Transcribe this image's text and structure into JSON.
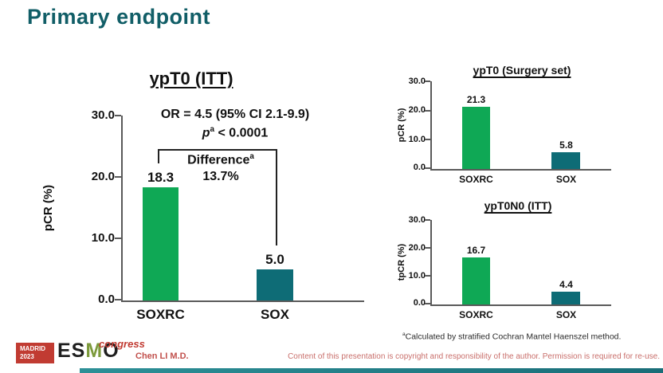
{
  "slide": {
    "title": "Primary endpoint",
    "presenter": "Chen LI M.D.",
    "disclaimer": "Content of this presentation is copyright and responsibility of the author. Permission is required for re-use.",
    "footnote_sup": "a",
    "footnote_text": "Calculated by stratified Cochran Mantel Haenszel method."
  },
  "logo": {
    "city": "MADRID",
    "year": "2023",
    "org_part1": "ES",
    "org_part2": "M",
    "org_part3": "O",
    "event": "congress"
  },
  "colors": {
    "title_teal": "#115E67",
    "bar_green": "#0FA855",
    "bar_teal": "#0E6C76",
    "axis_gray": "#5A5A5A",
    "red_text": "#C1504C",
    "logo_red": "#C13B32",
    "bottom_bar_teal": "#1F7E89"
  },
  "annotation": {
    "or_text": "OR = 4.5 (95% CI 2.1-9.9)",
    "p_italic": "p",
    "p_sup": "a",
    "p_rest": " < 0.0001",
    "difference_label": "Difference",
    "difference_sup": "a",
    "difference_value": "13.7%"
  },
  "chart_data": [
    {
      "id": "ypt0-itt",
      "type": "bar",
      "title": "ypT0 (ITT)",
      "ylabel": "pCR (%)",
      "categories": [
        "SOXRC",
        "SOX"
      ],
      "values": [
        18.3,
        5.0
      ],
      "value_labels": [
        "18.3",
        "5.0"
      ],
      "ylim": [
        0,
        30
      ],
      "yticks": [
        "30.0",
        "20.0",
        "10.0",
        "0.0"
      ],
      "grid": "off",
      "bar_colors": [
        "#0FA855",
        "#0E6C76"
      ],
      "annotations": [
        "OR = 4.5 (95% CI 2.1-9.9)",
        "pa < 0.0001",
        "Differencea 13.7%"
      ]
    },
    {
      "id": "ypt0-surgery-set",
      "type": "bar",
      "title": "ypT0 (Surgery set)",
      "ylabel": "pCR (%)",
      "categories": [
        "SOXRC",
        "SOX"
      ],
      "values": [
        21.3,
        5.8
      ],
      "value_labels": [
        "21.3",
        "5.8"
      ],
      "ylim": [
        0,
        30
      ],
      "yticks": [
        "30.0",
        "20.0",
        "10.0",
        "0.0"
      ],
      "grid": "off",
      "bar_colors": [
        "#0FA855",
        "#0E6C76"
      ]
    },
    {
      "id": "ypt0n0-itt",
      "type": "bar",
      "title": "ypT0N0 (ITT)",
      "ylabel": "tpCR (%)",
      "categories": [
        "SOXRC",
        "SOX"
      ],
      "values": [
        16.7,
        4.4
      ],
      "value_labels": [
        "16.7",
        "4.4"
      ],
      "ylim": [
        0,
        30
      ],
      "yticks": [
        "30.0",
        "20.0",
        "10.0",
        "0.0"
      ],
      "grid": "off",
      "bar_colors": [
        "#0FA855",
        "#0E6C76"
      ]
    }
  ]
}
